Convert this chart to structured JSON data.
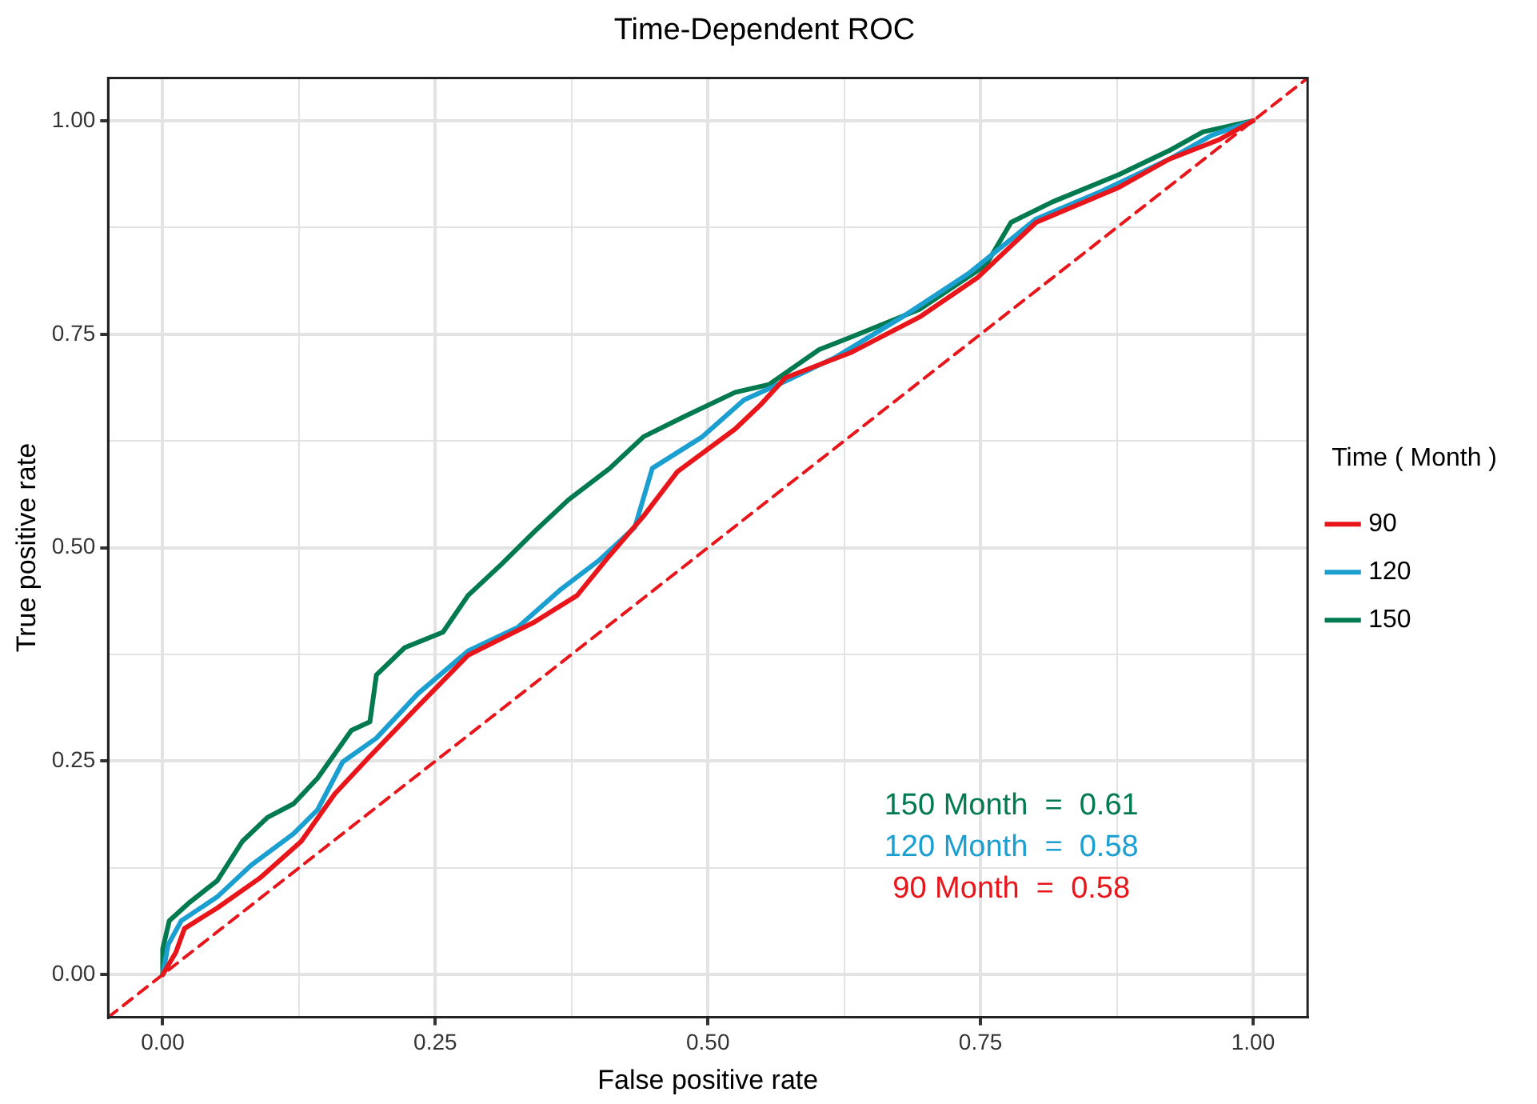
{
  "chart_data": {
    "type": "line",
    "title": "Time-Dependent ROC",
    "xlabel": "False positive rate",
    "ylabel": "True positive rate",
    "legend_title": "Time ( Month )",
    "legend": "right",
    "grid": true,
    "marker": "none",
    "line_style": "solid",
    "xlim": [
      -0.05,
      1.05
    ],
    "ylim": [
      -0.05,
      1.05
    ],
    "xticks": [
      {
        "value": 0,
        "label": "0.00"
      },
      {
        "value": 0.125,
        "label": null
      },
      {
        "value": 0.25,
        "label": "0.25"
      },
      {
        "value": 0.375,
        "label": null
      },
      {
        "value": 0.5,
        "label": "0.50"
      },
      {
        "value": 0.625,
        "label": null
      },
      {
        "value": 0.75,
        "label": "0.75"
      },
      {
        "value": 0.875,
        "label": null
      },
      {
        "value": 1,
        "label": "1.00"
      }
    ],
    "yticks": [
      {
        "value": 0,
        "label": "0.00"
      },
      {
        "value": 0.125,
        "label": null
      },
      {
        "value": 0.25,
        "label": "0.25"
      },
      {
        "value": 0.375,
        "label": null
      },
      {
        "value": 0.5,
        "label": "0.50"
      },
      {
        "value": 0.625,
        "label": null
      },
      {
        "value": 0.75,
        "label": "0.75"
      },
      {
        "value": 0.875,
        "label": null
      },
      {
        "value": 1,
        "label": "1.00"
      }
    ],
    "series": [
      {
        "name": "90",
        "color": "#e8161b",
        "x": [
          0,
          0.012,
          0.02,
          0.05,
          0.089,
          0.127,
          0.158,
          0.188,
          0.234,
          0.28,
          0.341,
          0.38,
          0.41,
          0.441,
          0.472,
          0.525,
          0.548,
          0.571,
          0.632,
          0.694,
          0.747,
          0.801,
          0.877,
          0.923,
          0.969,
          1
        ],
        "values": [
          0,
          0.026,
          0.054,
          0.078,
          0.113,
          0.156,
          0.212,
          0.253,
          0.314,
          0.374,
          0.413,
          0.444,
          0.491,
          0.537,
          0.589,
          0.639,
          0.667,
          0.699,
          0.729,
          0.77,
          0.816,
          0.881,
          0.922,
          0.955,
          0.978,
          1
        ]
      },
      {
        "name": "120",
        "color": "#1a9fd0",
        "x": [
          0,
          0.005,
          0.017,
          0.05,
          0.081,
          0.12,
          0.142,
          0.165,
          0.196,
          0.234,
          0.28,
          0.326,
          0.364,
          0.4,
          0.433,
          0.449,
          0.495,
          0.533,
          0.571,
          0.617,
          0.678,
          0.74,
          0.801,
          0.862,
          0.923,
          0.962,
          1
        ],
        "values": [
          0,
          0.035,
          0.063,
          0.091,
          0.128,
          0.165,
          0.193,
          0.249,
          0.277,
          0.329,
          0.379,
          0.407,
          0.45,
          0.485,
          0.524,
          0.593,
          0.63,
          0.673,
          0.695,
          0.723,
          0.77,
          0.822,
          0.885,
          0.918,
          0.955,
          0.983,
          1
        ]
      },
      {
        "name": "150",
        "color": "#007a4e",
        "x": [
          0,
          0,
          0.006,
          0.025,
          0.05,
          0.073,
          0.096,
          0.12,
          0.142,
          0.173,
          0.19,
          0.196,
          0.222,
          0.257,
          0.28,
          0.311,
          0.341,
          0.372,
          0.41,
          0.441,
          0.479,
          0.525,
          0.556,
          0.602,
          0.632,
          0.694,
          0.755,
          0.778,
          0.816,
          0.877,
          0.923,
          0.954,
          1
        ],
        "values": [
          0,
          0.03,
          0.063,
          0.085,
          0.11,
          0.156,
          0.184,
          0.2,
          0.23,
          0.286,
          0.296,
          0.351,
          0.383,
          0.401,
          0.444,
          0.481,
          0.519,
          0.556,
          0.593,
          0.63,
          0.654,
          0.682,
          0.691,
          0.732,
          0.747,
          0.779,
          0.831,
          0.881,
          0.905,
          0.937,
          0.965,
          0.987,
          1
        ]
      },
      {
        "color": "#e8161b",
        "line_style": "dashed",
        "x": [
          -0.05,
          1.05
        ],
        "values": [
          -0.05,
          1.05
        ]
      }
    ],
    "annotations": [
      "150 Month  =  0.61",
      "120 Month  =  0.58",
      "90 Month  =  0.58"
    ]
  }
}
